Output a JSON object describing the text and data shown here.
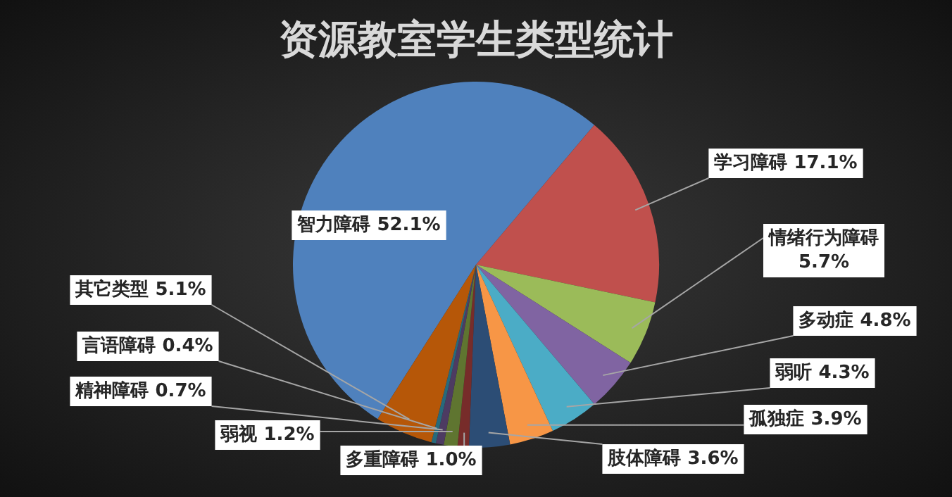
{
  "chart_data": {
    "type": "pie",
    "title": "资源教室学生类型统计",
    "categories": [
      "智力障碍",
      "学习障碍",
      "情绪行为障碍",
      "多动症",
      "弱听",
      "孤独症",
      "肢体障碍",
      "多重障碍",
      "弱视",
      "精神障碍",
      "言语障碍",
      "其它类型"
    ],
    "values": [
      52.1,
      17.1,
      5.7,
      4.8,
      4.3,
      3.9,
      3.6,
      1.0,
      1.2,
      0.7,
      0.4,
      5.1
    ],
    "colors": [
      "#4f81bd",
      "#c0504d",
      "#9bbb59",
      "#8064a2",
      "#4bacc6",
      "#f79646",
      "#2c4d75",
      "#772c2a",
      "#5f7530",
      "#4d3b62",
      "#276a7c",
      "#b65708"
    ],
    "value_labels": [
      "52.1%",
      "17.1%",
      "5.7%",
      "4.8%",
      "4.3%",
      "3.9%",
      "3.6%",
      "1.0%",
      "1.2%",
      "0.7%",
      "0.4%",
      "5.1%"
    ],
    "legend": false
  }
}
